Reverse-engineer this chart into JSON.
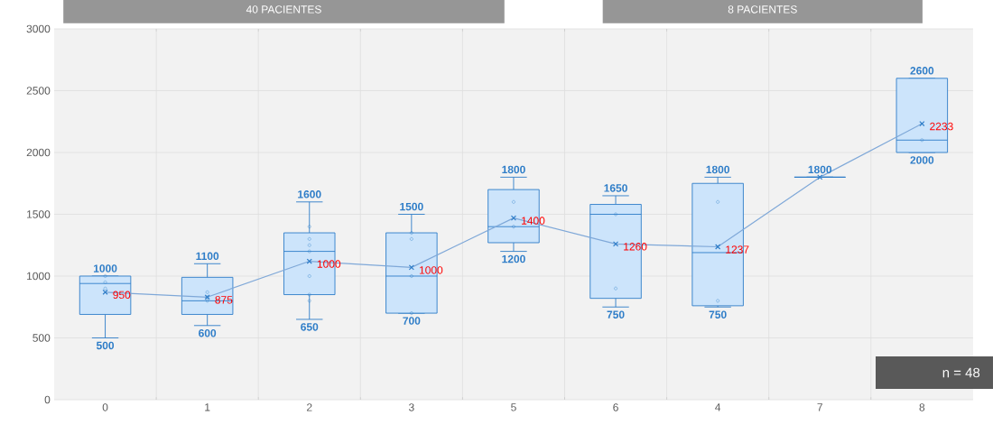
{
  "chart_data": {
    "type": "box",
    "categories": [
      "0",
      "1",
      "2",
      "3",
      "5",
      "6",
      "4",
      "7",
      "8"
    ],
    "boxes": [
      {
        "low": 500,
        "q1": 690,
        "median": 940,
        "q3": 1000,
        "high": 1000,
        "outliers": [
          1000,
          950,
          900
        ]
      },
      {
        "low": 600,
        "q1": 690,
        "median": 800,
        "q3": 990,
        "high": 1100,
        "outliers": [
          870,
          830,
          800
        ]
      },
      {
        "low": 650,
        "q1": 850,
        "median": 1200,
        "q3": 1350,
        "high": 1600,
        "outliers": [
          1400,
          1300,
          1250,
          1200,
          1000,
          850,
          800
        ]
      },
      {
        "low": 700,
        "q1": 700,
        "median": 1000,
        "q3": 1350,
        "high": 1500,
        "outliers": [
          1350,
          1300,
          1000,
          700
        ]
      },
      {
        "low": 1200,
        "q1": 1270,
        "median": 1400,
        "q3": 1700,
        "high": 1800,
        "outliers": [
          1600,
          1400
        ]
      },
      {
        "low": 750,
        "q1": 820,
        "median": 1500,
        "q3": 1580,
        "high": 1650,
        "outliers": [
          1500,
          900
        ]
      },
      {
        "low": 750,
        "q1": 760,
        "median": 1190,
        "q3": 1750,
        "high": 1800,
        "outliers": [
          1600,
          800
        ]
      },
      {
        "low": 1800,
        "q1": 1800,
        "median": 1800,
        "q3": 1800,
        "high": 1800
      },
      {
        "low": 2000,
        "q1": 2000,
        "median": 2100,
        "q3": 2600,
        "high": 2600,
        "outliers": [
          2100
        ]
      }
    ],
    "series": [
      {
        "type": "line",
        "color": "#7fa8d8",
        "values": [
          870,
          830,
          1120,
          1070,
          1470,
          1260,
          1237,
          1800,
          2233
        ]
      }
    ],
    "color": "#2e7dc8",
    "marker": "cross",
    "ylim": [
      0,
      3000
    ],
    "yticks": [
      0,
      500,
      1000,
      1500,
      2000,
      2500,
      3000
    ],
    "grid": true,
    "annotations": [
      "40 PACIENTES",
      "8 PACIENTES",
      "n = 48",
      {
        "text": "950",
        "x": "0",
        "y": 870
      },
      {
        "text": "875",
        "x": "1",
        "y": 830
      },
      {
        "text": "1000",
        "x": "2",
        "y": 1120
      },
      {
        "text": "1000",
        "x": "3",
        "y": 1070
      },
      {
        "text": "1400",
        "x": "5",
        "y": 1470
      },
      {
        "text": "1260",
        "x": "6",
        "y": 1260
      },
      {
        "text": "1237",
        "x": "4",
        "y": 1237
      },
      {
        "text": "2233",
        "x": "8",
        "y": 2233
      },
      {
        "text": "1000",
        "x": "0",
        "y": 1000
      },
      {
        "text": "500",
        "x": "0",
        "y": 500
      },
      {
        "text": "1100",
        "x": "1",
        "y": 1100
      },
      {
        "text": "600",
        "x": "1",
        "y": 600
      },
      {
        "text": "1600",
        "x": "2",
        "y": 1600
      },
      {
        "text": "650",
        "x": "2",
        "y": 650
      },
      {
        "text": "1500",
        "x": "3",
        "y": 1500
      },
      {
        "text": "700",
        "x": "3",
        "y": 700
      },
      {
        "text": "1800",
        "x": "5",
        "y": 1800
      },
      {
        "text": "1200",
        "x": "5",
        "y": 1200
      },
      {
        "text": "1650",
        "x": "6",
        "y": 1650
      },
      {
        "text": "750",
        "x": "6",
        "y": 750
      },
      {
        "text": "1800",
        "x": "4",
        "y": 1800
      },
      {
        "text": "750",
        "x": "4",
        "y": 750
      },
      {
        "text": "1800",
        "x": "7",
        "y": 1800
      },
      {
        "text": "2600",
        "x": "8",
        "y": 2600
      },
      {
        "text": "2000",
        "x": "8",
        "y": 2000
      }
    ]
  }
}
